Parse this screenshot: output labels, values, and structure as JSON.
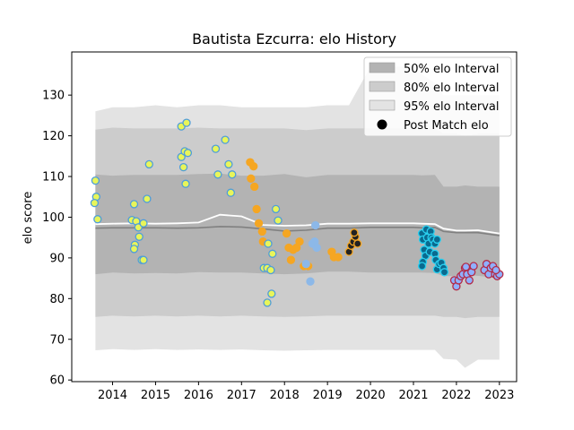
{
  "chart_data": {
    "type": "scatter",
    "title": "Bautista Ezcurra: elo History",
    "xlabel": "",
    "ylabel": "elo score",
    "xlim": [
      2013.05,
      2023.4
    ],
    "ylim": [
      59.6,
      140.6
    ],
    "x_ticks": [
      2014,
      2015,
      2016,
      2017,
      2018,
      2019,
      2020,
      2021,
      2022,
      2023
    ],
    "y_ticks": [
      60,
      70,
      80,
      90,
      100,
      110,
      120,
      130
    ],
    "grid": false,
    "legend_position": "top-right",
    "legend": [
      {
        "label": "50% elo Interval",
        "kind": "band",
        "color": "#b3b3b3"
      },
      {
        "label": "80% elo Interval",
        "kind": "band",
        "color": "#cccccc"
      },
      {
        "label": "95% elo Interval",
        "kind": "band",
        "color": "#e3e3e3"
      },
      {
        "label": "Post Match elo",
        "kind": "marker",
        "color": "#000000"
      }
    ],
    "bands": {
      "x": [
        2013.6,
        2014.0,
        2014.5,
        2015.0,
        2015.5,
        2016.0,
        2016.5,
        2017.0,
        2017.5,
        2018.0,
        2018.5,
        2019.0,
        2019.5,
        2020.0,
        2021.0,
        2021.2,
        2021.5,
        2021.7,
        2022.0,
        2022.2,
        2022.5,
        2023.0
      ],
      "mean": [
        97.3,
        97.4,
        97.4,
        97.4,
        97.3,
        97.4,
        97.7,
        97.6,
        97.1,
        96.6,
        96.8,
        97.3,
        97.3,
        97.5,
        97.5,
        97.4,
        97.5,
        96.5,
        96.2,
        96.2,
        96.2,
        95.5
      ],
      "upper_line": [
        98.3,
        98.4,
        98.5,
        98.4,
        98.5,
        98.7,
        100.6,
        100.2,
        98.1,
        97.9,
        98.0,
        98.4,
        98.4,
        98.5,
        98.5,
        98.4,
        98.3,
        97.2,
        96.7,
        96.7,
        96.8,
        96.0
      ],
      "p50_low": [
        86.0,
        86.4,
        86.2,
        86.3,
        86.2,
        86.5,
        86.4,
        86.4,
        86.2,
        86.0,
        86.2,
        86.6,
        86.6,
        86.4,
        86.4,
        86.4,
        86.3,
        85.5,
        85.5,
        85.8,
        85.6,
        85.0
      ],
      "p50_high": [
        110.5,
        110.2,
        110.4,
        110.4,
        110.4,
        110.6,
        110.7,
        110.2,
        110.2,
        110.6,
        109.8,
        110.4,
        110.4,
        110.4,
        110.4,
        110.3,
        110.4,
        107.5,
        107.5,
        107.8,
        107.5,
        107.5
      ],
      "p80_low": [
        75.5,
        75.8,
        75.6,
        75.8,
        75.6,
        75.8,
        75.6,
        75.8,
        75.6,
        75.5,
        75.6,
        75.8,
        75.8,
        75.8,
        75.8,
        75.8,
        75.8,
        75.5,
        75.5,
        75.2,
        75.5,
        75.5
      ],
      "p80_high": [
        121.5,
        122.0,
        121.8,
        121.8,
        121.8,
        122.0,
        121.8,
        121.8,
        121.8,
        121.8,
        121.4,
        121.8,
        121.8,
        121.8,
        121.8,
        121.8,
        121.8,
        120.5,
        120.5,
        120.0,
        120.5,
        120.5
      ],
      "p95_low": [
        67.3,
        67.6,
        67.4,
        67.6,
        67.4,
        67.5,
        67.4,
        67.5,
        67.3,
        67.2,
        67.3,
        67.4,
        67.4,
        67.4,
        67.4,
        67.4,
        67.4,
        65.2,
        65.0,
        63.0,
        65.0,
        65.0
      ],
      "p95_high": [
        126.0,
        127.0,
        127.0,
        127.5,
        127.0,
        127.5,
        127.5,
        127.0,
        127.0,
        127.0,
        127.0,
        127.5,
        127.5,
        137.0,
        137.0,
        135.0,
        133.0,
        130.0,
        130.0,
        130.0,
        130.0,
        130.0
      ]
    },
    "series": [
      {
        "color": "#e8f55a",
        "edge": "#4f9ed9",
        "points": [
          [
            2013.6,
            109.0
          ],
          [
            2013.62,
            105.0
          ],
          [
            2013.58,
            103.5
          ],
          [
            2013.65,
            99.5
          ],
          [
            2014.5,
            103.2
          ],
          [
            2014.45,
            99.3
          ],
          [
            2014.55,
            99.0
          ],
          [
            2014.6,
            97.5
          ],
          [
            2014.52,
            93.2
          ],
          [
            2014.5,
            92.2
          ],
          [
            2014.62,
            95.2
          ],
          [
            2014.68,
            89.5
          ],
          [
            2014.72,
            89.5
          ],
          [
            2014.72,
            98.5
          ],
          [
            2014.8,
            104.5
          ],
          [
            2014.85,
            113.0
          ],
          [
            2015.6,
            122.3
          ],
          [
            2015.72,
            123.2
          ],
          [
            2015.6,
            114.8
          ],
          [
            2015.65,
            112.3
          ],
          [
            2015.68,
            116.2
          ],
          [
            2015.75,
            115.8
          ],
          [
            2015.7,
            108.2
          ],
          [
            2016.4,
            116.8
          ],
          [
            2016.45,
            110.5
          ],
          [
            2016.62,
            119.0
          ],
          [
            2016.7,
            113.0
          ],
          [
            2016.78,
            110.5
          ],
          [
            2016.75,
            106.0
          ]
        ]
      },
      {
        "color": "#f5a623",
        "edge": "#f5a623",
        "points": [
          [
            2017.2,
            113.5
          ],
          [
            2017.28,
            112.5
          ],
          [
            2017.22,
            109.5
          ],
          [
            2017.3,
            107.5
          ],
          [
            2017.35,
            102.0
          ],
          [
            2017.4,
            98.5
          ],
          [
            2017.48,
            96.5
          ],
          [
            2017.5,
            94.0
          ],
          [
            2018.05,
            96.0
          ],
          [
            2018.1,
            92.5
          ],
          [
            2018.15,
            89.5
          ],
          [
            2018.2,
            92.0
          ],
          [
            2018.28,
            92.5
          ],
          [
            2018.35,
            94.0
          ],
          [
            2018.45,
            88.0
          ],
          [
            2018.55,
            88.0
          ]
        ]
      },
      {
        "color": "#e8f55a",
        "edge": "#4f9ed9",
        "points": [
          [
            2017.52,
            87.5
          ],
          [
            2017.6,
            87.5
          ],
          [
            2017.68,
            87.0
          ],
          [
            2017.62,
            93.5
          ],
          [
            2017.72,
            91.0
          ],
          [
            2017.8,
            102.0
          ],
          [
            2017.85,
            99.2
          ],
          [
            2017.7,
            81.2
          ],
          [
            2017.6,
            79.0
          ]
        ]
      },
      {
        "color": "#8cb8e8",
        "edge": "#8cb8e8",
        "points": [
          [
            2018.5,
            88.5
          ],
          [
            2018.6,
            84.2
          ],
          [
            2018.65,
            93.5
          ],
          [
            2018.7,
            94.0
          ],
          [
            2018.75,
            92.5
          ],
          [
            2018.72,
            98.0
          ]
        ]
      },
      {
        "color": "#f5a623",
        "edge": "#f5a623",
        "points": [
          [
            2019.1,
            91.5
          ],
          [
            2019.15,
            90.2
          ],
          [
            2019.25,
            90.2
          ]
        ]
      },
      {
        "color": "#222222",
        "edge": "#f5a623",
        "points": [
          [
            2019.5,
            91.5
          ],
          [
            2019.55,
            93.0
          ],
          [
            2019.6,
            94.0
          ],
          [
            2019.65,
            95.2
          ],
          [
            2019.62,
            96.2
          ],
          [
            2019.7,
            93.5
          ]
        ]
      },
      {
        "color": "#0a6a8f",
        "edge": "#29d0f0",
        "points": [
          [
            2021.2,
            96.0
          ],
          [
            2021.22,
            94.5
          ],
          [
            2021.25,
            92.0
          ],
          [
            2021.28,
            90.5
          ],
          [
            2021.22,
            89.0
          ],
          [
            2021.2,
            88.0
          ],
          [
            2021.3,
            97.0
          ],
          [
            2021.32,
            95.0
          ],
          [
            2021.35,
            93.5
          ],
          [
            2021.38,
            91.5
          ],
          [
            2021.4,
            96.5
          ],
          [
            2021.42,
            95.0
          ],
          [
            2021.45,
            94.5
          ],
          [
            2021.5,
            93.5
          ],
          [
            2021.55,
            94.5
          ],
          [
            2021.5,
            91.0
          ],
          [
            2021.52,
            89.5
          ],
          [
            2021.55,
            87.2
          ],
          [
            2021.6,
            88.5
          ],
          [
            2021.65,
            88.8
          ],
          [
            2021.7,
            87.5
          ],
          [
            2021.72,
            86.5
          ]
        ]
      },
      {
        "color": "#8fb0ff",
        "edge": "#b32b48",
        "points": [
          [
            2021.95,
            84.5
          ],
          [
            2022.0,
            83.0
          ],
          [
            2022.05,
            84.5
          ],
          [
            2022.1,
            85.5
          ],
          [
            2022.15,
            86.0
          ],
          [
            2022.2,
            87.5
          ],
          [
            2022.22,
            87.8
          ],
          [
            2022.25,
            86.0
          ],
          [
            2022.3,
            84.5
          ],
          [
            2022.35,
            86.5
          ],
          [
            2022.4,
            88.0
          ],
          [
            2022.65,
            87.0
          ],
          [
            2022.7,
            88.5
          ],
          [
            2022.75,
            86.0
          ],
          [
            2022.8,
            87.5
          ],
          [
            2022.85,
            88.0
          ],
          [
            2022.9,
            86.0
          ],
          [
            2022.95,
            85.5
          ],
          [
            2023.0,
            86.0
          ],
          [
            2022.92,
            87.0
          ]
        ]
      }
    ]
  }
}
